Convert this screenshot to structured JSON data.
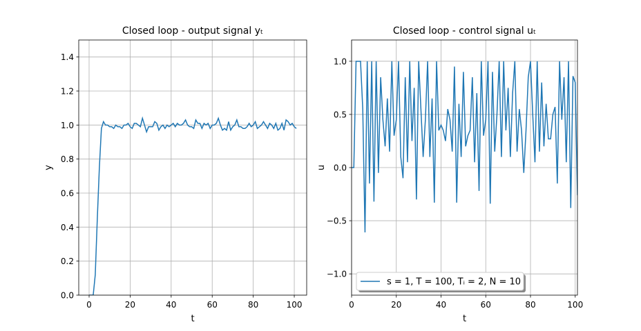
{
  "chart_data": [
    {
      "type": "line",
      "title": "Closed loop - output signal yₜ",
      "xlabel": "t",
      "ylabel": "y",
      "x": [
        0,
        1,
        2,
        3,
        4,
        5,
        6,
        7,
        8,
        9,
        10,
        11,
        12,
        13,
        14,
        15,
        16,
        17,
        18,
        19,
        20,
        21,
        22,
        23,
        24,
        25,
        26,
        27,
        28,
        29,
        30,
        31,
        32,
        33,
        34,
        35,
        36,
        37,
        38,
        39,
        40,
        41,
        42,
        43,
        44,
        45,
        46,
        47,
        48,
        49,
        50,
        51,
        52,
        53,
        54,
        55,
        56,
        57,
        58,
        59,
        60,
        61,
        62,
        63,
        64,
        65,
        66,
        67,
        68,
        69,
        70,
        71,
        72,
        73,
        74,
        75,
        76,
        77,
        78,
        79,
        80,
        81,
        82,
        83,
        84,
        85,
        86,
        87,
        88,
        89,
        90,
        91,
        92,
        93,
        94,
        95,
        96,
        97,
        98,
        99,
        100,
        101
      ],
      "series": [
        {
          "color": "#1f77b4",
          "values": [
            0,
            0,
            0,
            0.12,
            0.45,
            0.75,
            0.98,
            1.02,
            1.0,
            1.0,
            0.99,
            0.99,
            0.98,
            1.0,
            0.99,
            0.99,
            0.98,
            1.0,
            1.0,
            1.01,
            0.99,
            0.98,
            1.01,
            1.01,
            1.0,
            0.99,
            1.04,
            1.0,
            0.96,
            0.99,
            0.99,
            0.99,
            1.02,
            1.01,
            0.97,
            0.99,
            1.0,
            0.98,
            1.0,
            0.99,
            1.0,
            1.01,
            0.99,
            1.01,
            1.0,
            1.0,
            1.01,
            1.03,
            1.0,
            0.99,
            0.99,
            0.98,
            1.03,
            1.01,
            1.01,
            0.98,
            1.01,
            1.0,
            1.01,
            0.98,
            1.0,
            1.0,
            1.01,
            1.04,
            1.0,
            0.97,
            0.98,
            0.97,
            1.02,
            0.97,
            0.99,
            1.0,
            1.03,
            0.99,
            0.99,
            0.98,
            0.98,
            0.99,
            1.01,
            0.99,
            1.0,
            1.02,
            0.98,
            0.99,
            1.0,
            1.02,
            1.0,
            0.98,
            1.01,
            1.0,
            0.98,
            1.01,
            0.97,
            0.98,
            1.01,
            0.97,
            1.03,
            1.02,
            1.0,
            1.01,
            0.99,
            0.98
          ]
        }
      ],
      "xlim": [
        -5.05,
        106.05
      ],
      "xticks": [
        0,
        20,
        40,
        60,
        80,
        100
      ],
      "ylim": [
        0,
        1.5
      ],
      "yticks": [
        {
          "value": 0,
          "label": "0.0"
        },
        {
          "value": 0.2,
          "label": "0.2"
        },
        {
          "value": 0.4,
          "label": "0.4"
        },
        {
          "value": 0.6,
          "label": "0.6"
        },
        {
          "value": 0.8,
          "label": "0.8"
        },
        {
          "value": 1.0,
          "label": "1.0"
        },
        {
          "value": 1.2,
          "label": "1.2"
        },
        {
          "value": 1.4,
          "label": "1.4"
        }
      ],
      "grid": true
    },
    {
      "type": "line",
      "title": "Closed loop - control signal uₜ",
      "xlabel": "t",
      "ylabel": "u",
      "x": [
        0,
        1,
        2,
        3,
        4,
        5,
        6,
        7,
        8,
        9,
        10,
        11,
        12,
        13,
        14,
        15,
        16,
        17,
        18,
        19,
        20,
        21,
        22,
        23,
        24,
        25,
        26,
        27,
        28,
        29,
        30,
        31,
        32,
        33,
        34,
        35,
        36,
        37,
        38,
        39,
        40,
        41,
        42,
        43,
        44,
        45,
        46,
        47,
        48,
        49,
        50,
        51,
        52,
        53,
        54,
        55,
        56,
        57,
        58,
        59,
        60,
        61,
        62,
        63,
        64,
        65,
        66,
        67,
        68,
        69,
        70,
        71,
        72,
        73,
        74,
        75,
        76,
        77,
        78,
        79,
        80,
        81,
        82,
        83,
        84,
        85,
        86,
        87,
        88,
        89,
        90,
        91,
        92,
        93,
        94,
        95,
        96,
        97,
        98,
        99,
        100,
        101
      ],
      "series": [
        {
          "name": "s = 1, T = 100, Tᵢ = 2, N = 10",
          "color": "#1f77b4",
          "values": [
            0,
            0,
            1,
            1,
            1,
            0.55,
            -0.61,
            1,
            -0.15,
            1,
            -0.32,
            1,
            -0.05,
            0.85,
            0.45,
            0.2,
            0.65,
            0.15,
            1,
            0.3,
            0.45,
            1,
            0.1,
            -0.1,
            0.85,
            0.05,
            1,
            0.25,
            0.75,
            -0.3,
            1,
            0.55,
            0.1,
            0.45,
            1,
            0.1,
            0.65,
            -0.33,
            1,
            0.35,
            0.4,
            0.35,
            0.25,
            0.55,
            0.45,
            0.15,
            0.95,
            -0.33,
            0.6,
            0.1,
            0.9,
            0.2,
            0.3,
            0.35,
            0.85,
            0.05,
            0.7,
            -0.22,
            1,
            0.3,
            0.45,
            1,
            -0.34,
            0.9,
            0.15,
            0.5,
            1,
            0.1,
            1,
            0.35,
            0.75,
            0.1,
            0.7,
            1,
            0.15,
            0.55,
            0.35,
            -0.05,
            0.35,
            0.85,
            1,
            0.5,
            0.05,
            1,
            0.15,
            0.8,
            0.2,
            0.6,
            0.27,
            0.27,
            0.5,
            0.57,
            -0.15,
            1,
            0.45,
            0.85,
            0.05,
            1,
            -0.38,
            0.86,
            0.8,
            -0.26
          ]
        }
      ],
      "xlim": [
        0,
        101
      ],
      "xticks": [
        0,
        20,
        40,
        60,
        80,
        100
      ],
      "ylim": [
        -1.2,
        1.2
      ],
      "yticks": [
        {
          "value": -1.0,
          "label": "−1.0"
        },
        {
          "value": -0.5,
          "label": "−0.5"
        },
        {
          "value": 0,
          "label": "0.0"
        },
        {
          "value": 0.5,
          "label": "0.5"
        },
        {
          "value": 1.0,
          "label": "1.0"
        }
      ],
      "grid": true,
      "legend": "lower left"
    }
  ]
}
